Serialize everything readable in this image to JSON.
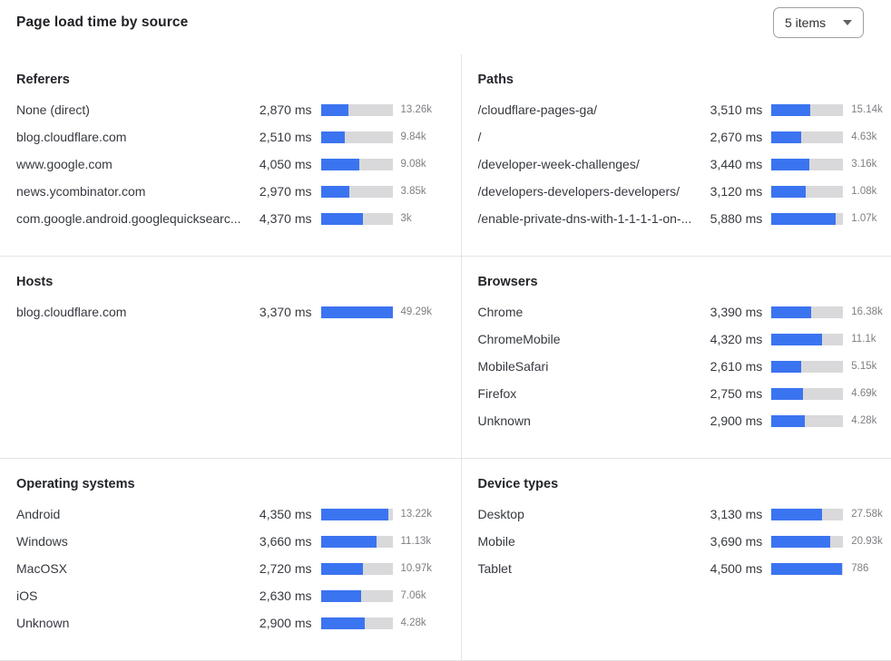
{
  "header": {
    "title": "Page load time by source",
    "items_select": {
      "value": "5 items"
    }
  },
  "chart_data": {
    "type": "bar",
    "orientation": "horizontal",
    "unit": "ms",
    "bar_color": "#3B74F0",
    "track_color": "#D9D9DB",
    "panels": [
      {
        "title": "Referers",
        "rows": [
          {
            "label": "None (direct)",
            "ms": 2870,
            "ms_display": "2,870 ms",
            "count": "13.26k",
            "bar_pct": 39
          },
          {
            "label": "blog.cloudflare.com",
            "ms": 2510,
            "ms_display": "2,510 ms",
            "count": "9.84k",
            "bar_pct": 34
          },
          {
            "label": "www.google.com",
            "ms": 4050,
            "ms_display": "4,050 ms",
            "count": "9.08k",
            "bar_pct": 54
          },
          {
            "label": "news.ycombinator.com",
            "ms": 2970,
            "ms_display": "2,970 ms",
            "count": "3.85k",
            "bar_pct": 40
          },
          {
            "label": "com.google.android.googlequicksearc...",
            "ms": 4370,
            "ms_display": "4,370 ms",
            "count": "3k",
            "bar_pct": 59
          }
        ]
      },
      {
        "title": "Paths",
        "rows": [
          {
            "label": "/cloudflare-pages-ga/",
            "ms": 3510,
            "ms_display": "3,510 ms",
            "count": "15.14k",
            "bar_pct": 54
          },
          {
            "label": "/",
            "ms": 2670,
            "ms_display": "2,670 ms",
            "count": "4.63k",
            "bar_pct": 41
          },
          {
            "label": "/developer-week-challenges/",
            "ms": 3440,
            "ms_display": "3,440 ms",
            "count": "3.16k",
            "bar_pct": 53
          },
          {
            "label": "/developers-developers-developers/",
            "ms": 3120,
            "ms_display": "3,120 ms",
            "count": "1.08k",
            "bar_pct": 48
          },
          {
            "label": "/enable-private-dns-with-1-1-1-1-on-...",
            "ms": 5880,
            "ms_display": "5,880 ms",
            "count": "1.07k",
            "bar_pct": 90
          }
        ]
      },
      {
        "title": "Hosts",
        "rows": [
          {
            "label": "blog.cloudflare.com",
            "ms": 3370,
            "ms_display": "3,370 ms",
            "count": "49.29k",
            "bar_pct": 100
          }
        ]
      },
      {
        "title": "Browsers",
        "rows": [
          {
            "label": "Chrome",
            "ms": 3390,
            "ms_display": "3,390 ms",
            "count": "16.38k",
            "bar_pct": 55
          },
          {
            "label": "ChromeMobile",
            "ms": 4320,
            "ms_display": "4,320 ms",
            "count": "11.1k",
            "bar_pct": 71
          },
          {
            "label": "MobileSafari",
            "ms": 2610,
            "ms_display": "2,610 ms",
            "count": "5.15k",
            "bar_pct": 41
          },
          {
            "label": "Firefox",
            "ms": 2750,
            "ms_display": "2,750 ms",
            "count": "4.69k",
            "bar_pct": 44
          },
          {
            "label": "Unknown",
            "ms": 2900,
            "ms_display": "2,900 ms",
            "count": "4.28k",
            "bar_pct": 47
          }
        ]
      },
      {
        "title": "Operating systems",
        "rows": [
          {
            "label": "Android",
            "ms": 4350,
            "ms_display": "4,350 ms",
            "count": "13.22k",
            "bar_pct": 94
          },
          {
            "label": "Windows",
            "ms": 3660,
            "ms_display": "3,660 ms",
            "count": "11.13k",
            "bar_pct": 78
          },
          {
            "label": "MacOSX",
            "ms": 2720,
            "ms_display": "2,720 ms",
            "count": "10.97k",
            "bar_pct": 59
          },
          {
            "label": "iOS",
            "ms": 2630,
            "ms_display": "2,630 ms",
            "count": "7.06k",
            "bar_pct": 56
          },
          {
            "label": "Unknown",
            "ms": 2900,
            "ms_display": "2,900 ms",
            "count": "4.28k",
            "bar_pct": 62
          }
        ]
      },
      {
        "title": "Device types",
        "rows": [
          {
            "label": "Desktop",
            "ms": 3130,
            "ms_display": "3,130 ms",
            "count": "27.58k",
            "bar_pct": 70
          },
          {
            "label": "Mobile",
            "ms": 3690,
            "ms_display": "3,690 ms",
            "count": "20.93k",
            "bar_pct": 82
          },
          {
            "label": "Tablet",
            "ms": 4500,
            "ms_display": "4,500 ms",
            "count": "786",
            "bar_pct": 98
          }
        ]
      }
    ]
  }
}
